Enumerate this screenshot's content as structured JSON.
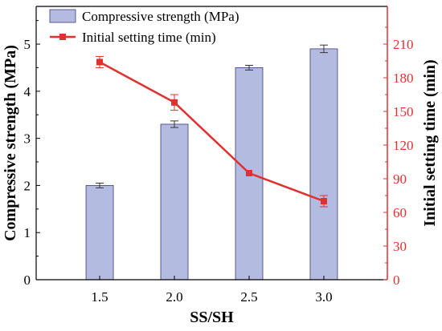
{
  "chart_data": {
    "type": "bar",
    "categories": [
      "1.5",
      "2.0",
      "2.5",
      "3.0"
    ],
    "xlabel": "SS/SH",
    "ylabel_left": "Compressive strength (MPa)",
    "ylabel_right": "Initial setting time (min)",
    "ylim_left": [
      0,
      5.8
    ],
    "ylim_right": [
      0,
      243.6
    ],
    "yticks_left": [
      0,
      1,
      2,
      3,
      4,
      5
    ],
    "yticks_right": [
      0,
      30,
      60,
      90,
      120,
      150,
      180,
      210
    ],
    "series": [
      {
        "name": "Compressive strength (MPa)",
        "type": "bar",
        "axis": "left",
        "values": [
          2.0,
          3.3,
          4.5,
          4.9
        ],
        "errors": [
          0.05,
          0.07,
          0.05,
          0.08
        ],
        "color": "#b3bbe0",
        "edge_color": "#3c3c78"
      },
      {
        "name": "Initial setting time (min)",
        "type": "line",
        "axis": "right",
        "values": [
          194,
          158,
          95,
          70
        ],
        "errors": [
          5,
          7,
          0,
          5
        ],
        "color": "#e03030"
      }
    ],
    "legend": {
      "position": "top-left"
    },
    "grid": false
  }
}
